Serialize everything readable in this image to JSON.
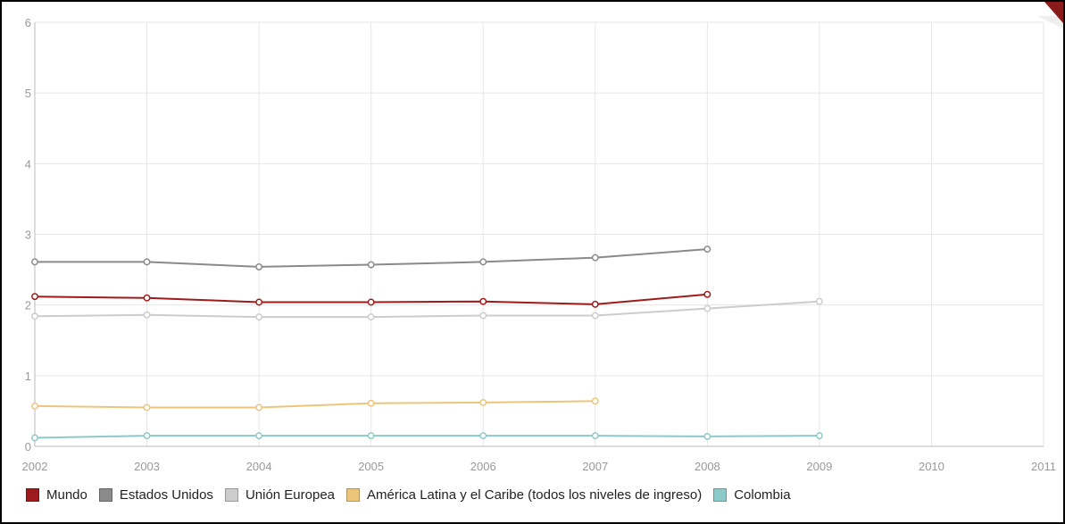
{
  "chart_data": {
    "type": "line",
    "ylim": [
      0,
      6
    ],
    "xlim": [
      2002,
      2011
    ],
    "y_ticks": [
      "0",
      "1",
      "2",
      "3",
      "4",
      "5",
      "6"
    ],
    "x_ticks": [
      "2002",
      "2003",
      "2004",
      "2005",
      "2006",
      "2007",
      "2008",
      "2009",
      "2010",
      "2011"
    ],
    "grid": true,
    "legend_position": "bottom",
    "series": [
      {
        "name": "Mundo",
        "color": "#9e1b1b",
        "points": [
          [
            2002,
            2.12
          ],
          [
            2003,
            2.1
          ],
          [
            2004,
            2.04
          ],
          [
            2005,
            2.04
          ],
          [
            2006,
            2.05
          ],
          [
            2007,
            2.01
          ],
          [
            2008,
            2.15
          ]
        ]
      },
      {
        "name": "Estados Unidos",
        "color": "#8a8a8a",
        "points": [
          [
            2002,
            2.61
          ],
          [
            2003,
            2.61
          ],
          [
            2004,
            2.54
          ],
          [
            2005,
            2.57
          ],
          [
            2006,
            2.61
          ],
          [
            2007,
            2.67
          ],
          [
            2008,
            2.79
          ]
        ]
      },
      {
        "name": "Unión Europea",
        "color": "#cccccc",
        "points": [
          [
            2002,
            1.84
          ],
          [
            2003,
            1.86
          ],
          [
            2004,
            1.83
          ],
          [
            2005,
            1.83
          ],
          [
            2006,
            1.85
          ],
          [
            2007,
            1.85
          ],
          [
            2008,
            1.95
          ],
          [
            2009,
            2.05
          ]
        ]
      },
      {
        "name": "América Latina y el Caribe (todos los niveles de ingreso)",
        "color": "#ecc57a",
        "points": [
          [
            2002,
            0.57
          ],
          [
            2003,
            0.55
          ],
          [
            2004,
            0.55
          ],
          [
            2005,
            0.61
          ],
          [
            2006,
            0.62
          ],
          [
            2007,
            0.64
          ]
        ]
      },
      {
        "name": "Colombia",
        "color": "#8ccac9",
        "points": [
          [
            2002,
            0.12
          ],
          [
            2003,
            0.15
          ],
          [
            2004,
            0.15
          ],
          [
            2005,
            0.15
          ],
          [
            2006,
            0.15
          ],
          [
            2007,
            0.15
          ],
          [
            2008,
            0.14
          ],
          [
            2009,
            0.15
          ]
        ]
      }
    ]
  }
}
